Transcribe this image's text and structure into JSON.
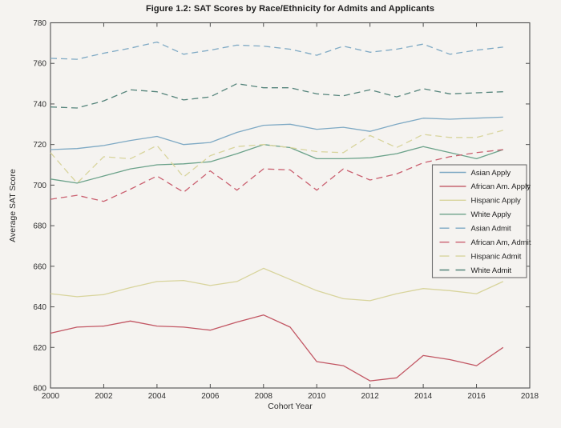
{
  "figure": {
    "background": "#f5f3f0",
    "axis_color": "#4f4f4f",
    "text_color": "#2e2e2e"
  },
  "chart_data": {
    "type": "line",
    "title": "Figure 1.2: SAT Scores by Race/Ethnicity for Admits and Applicants",
    "xlabel": "Cohort Year",
    "ylabel": "Average SAT Score",
    "xlim": [
      2000,
      2018
    ],
    "ylim": [
      600,
      780
    ],
    "x_ticks": [
      2000,
      2002,
      2004,
      2006,
      2008,
      2010,
      2012,
      2014,
      2016,
      2018
    ],
    "y_ticks": [
      600,
      620,
      640,
      660,
      680,
      700,
      720,
      740,
      760,
      780
    ],
    "grid": false,
    "legend_position": "middle-right",
    "x": [
      2000,
      2001,
      2002,
      2003,
      2004,
      2005,
      2006,
      2007,
      2008,
      2009,
      2010,
      2011,
      2012,
      2013,
      2014,
      2015,
      2016,
      2017
    ],
    "series": [
      {
        "name": "Asian Apply",
        "style": "solid",
        "color": "#7ea9c4",
        "values": [
          717.5,
          718,
          719.5,
          722,
          724,
          720,
          721,
          726,
          729.5,
          730,
          727.5,
          728.5,
          726.5,
          730,
          733,
          732.5,
          733,
          733.5
        ]
      },
      {
        "name": "African Am. Apply",
        "style": "solid",
        "color": "#c25663",
        "values": [
          627,
          630,
          630.5,
          633,
          630.5,
          630,
          628.5,
          632.5,
          636,
          630,
          613,
          611,
          603.5,
          605,
          616,
          614,
          611,
          620
        ]
      },
      {
        "name": "Hispanic Apply",
        "style": "solid",
        "color": "#d8d49c",
        "values": [
          646.5,
          645,
          646,
          649.5,
          652.5,
          653,
          650.5,
          652.5,
          659,
          653.5,
          648,
          644,
          643,
          646.5,
          649,
          648,
          646.5,
          652.5
        ]
      },
      {
        "name": "White Apply",
        "style": "solid",
        "color": "#6ba28a",
        "values": [
          703,
          701,
          704.5,
          708,
          710,
          710.5,
          711.5,
          715.5,
          720,
          718.5,
          713,
          713,
          713.5,
          715.5,
          719,
          716,
          713,
          717.5
        ]
      },
      {
        "name": "Asian Admit",
        "style": "dashed",
        "color": "#7ea9c4",
        "values": [
          762.5,
          762,
          765,
          767.5,
          770.5,
          764.5,
          766.5,
          769,
          768.5,
          767,
          764,
          768.5,
          765.5,
          767,
          769.5,
          764.5,
          766.5,
          768
        ]
      },
      {
        "name": "African Am, Admit",
        "style": "dashed",
        "color": "#ca5f6f",
        "values": [
          693,
          695,
          692,
          698,
          704.5,
          696.5,
          707,
          697.5,
          708,
          707.5,
          697.5,
          708,
          702.5,
          705.5,
          711,
          714,
          716,
          717.5
        ]
      },
      {
        "name": "Hispanic Admit",
        "style": "dashed",
        "color": "#d8d49c",
        "values": [
          716,
          701,
          714,
          713,
          719.5,
          704,
          714.5,
          719,
          720,
          718.5,
          716.5,
          716,
          724.5,
          718.5,
          725,
          723.5,
          723.5,
          727
        ]
      },
      {
        "name": "White Admit",
        "style": "dashed",
        "color": "#55847b",
        "values": [
          738.5,
          738,
          741.5,
          747,
          746,
          742,
          743.5,
          750,
          748,
          748,
          745,
          744,
          747,
          743.5,
          747.5,
          745,
          745.5,
          746
        ]
      }
    ]
  }
}
